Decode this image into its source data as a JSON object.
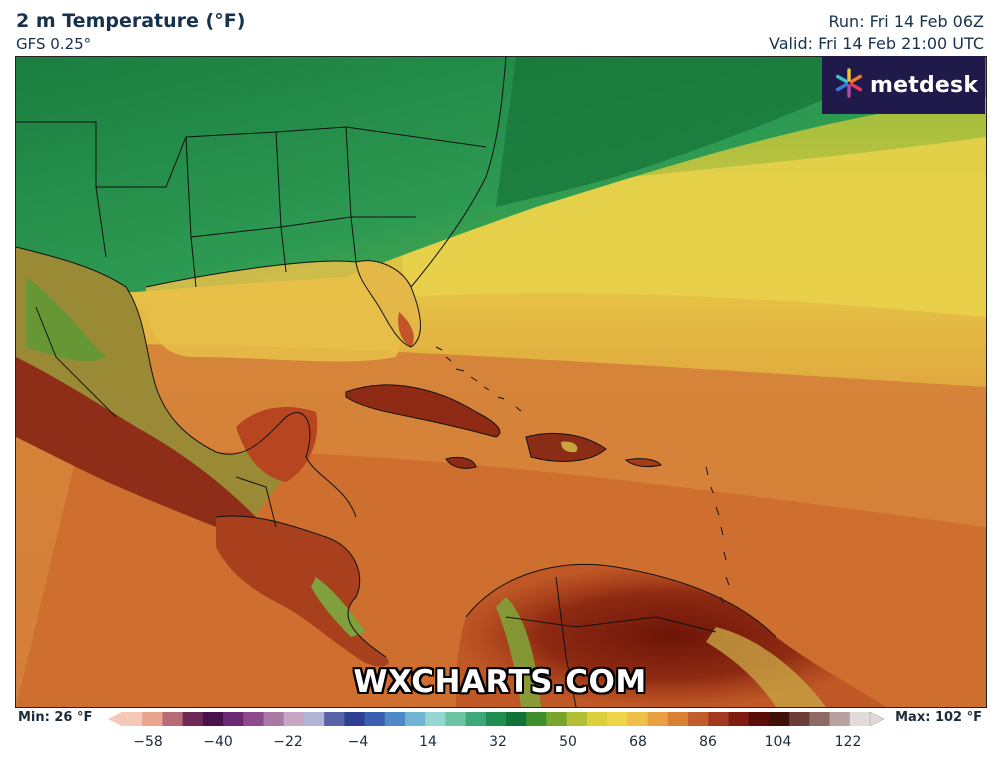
{
  "header": {
    "title": "2 m Temperature (°F)",
    "model": "GFS 0.25°",
    "run": "Run: Fri 14 Feb 06Z",
    "valid": "Valid: Fri 14 Feb 21:00 UTC"
  },
  "logo": {
    "text": "metdesk",
    "icon": "metdesk-flower-icon"
  },
  "watermark": "WXCHARTS.COM",
  "legend": {
    "min_label": "Min: 26 °F",
    "max_label": "Max: 102 °F",
    "ticks": [
      "−58",
      "−40",
      "−22",
      "−4",
      "14",
      "32",
      "50",
      "68",
      "86",
      "104",
      "122"
    ],
    "colors": [
      "#f6c8b8",
      "#e9a58e",
      "#b86a78",
      "#6d2a58",
      "#4a124d",
      "#6b2873",
      "#8e4a8e",
      "#a97aa6",
      "#c6a6c4",
      "#b0b6d4",
      "#5a63a6",
      "#2f3f92",
      "#3b5fb0",
      "#4f8ac6",
      "#6fb4d2",
      "#93d6d2",
      "#6dc4a4",
      "#3ea87a",
      "#208c50",
      "#117238",
      "#3f8f2c",
      "#7aa52d",
      "#b3bf34",
      "#dcd03a",
      "#efd548",
      "#eec04a",
      "#e8a040",
      "#d98035",
      "#c25c2c",
      "#a33a20",
      "#801c12",
      "#5c0c08",
      "#401008",
      "#6a3c38",
      "#8d6a66",
      "#b8a2a0",
      "#e2dad8"
    ]
  },
  "map": {
    "description_colors": {
      "cold": "#1f8a43",
      "cool": "#3ea85a",
      "mild": "#9fc43c",
      "warm": "#e0b540",
      "hot": "#d27434",
      "very_hot": "#9a2e1a"
    }
  }
}
